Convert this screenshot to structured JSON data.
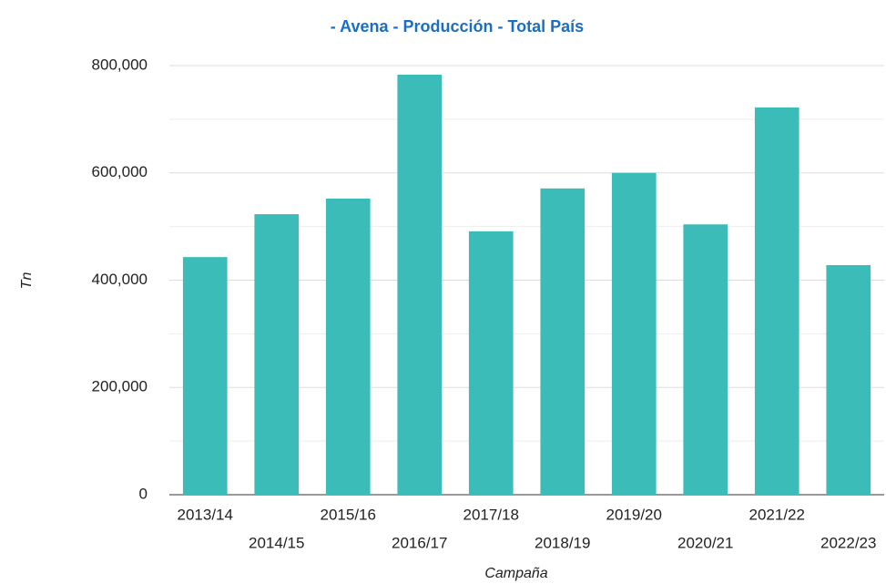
{
  "chart_data": {
    "type": "bar",
    "title": "- Avena - Producción - Total País",
    "x_label": "Campaña",
    "y_label": "Tn",
    "categories": [
      "2013/14",
      "2014/15",
      "2015/16",
      "2016/17",
      "2017/18",
      "2018/19",
      "2019/20",
      "2020/21",
      "2021/22",
      "2022/23"
    ],
    "values": [
      443000,
      523000,
      552000,
      783000,
      491000,
      571000,
      600000,
      504000,
      722000,
      428000
    ],
    "color": "#3bbcb8",
    "ylim": [
      0,
      800000
    ],
    "yticks": [
      0,
      {
        "value": 200000,
        "label": "200,000"
      },
      {
        "value": 400000,
        "label": "400,000"
      },
      {
        "value": 600000,
        "label": "600,000"
      },
      {
        "value": 800000,
        "label": "800,000"
      }
    ],
    "minor_yticks": [
      100000,
      300000,
      500000,
      700000
    ],
    "grid": true
  }
}
